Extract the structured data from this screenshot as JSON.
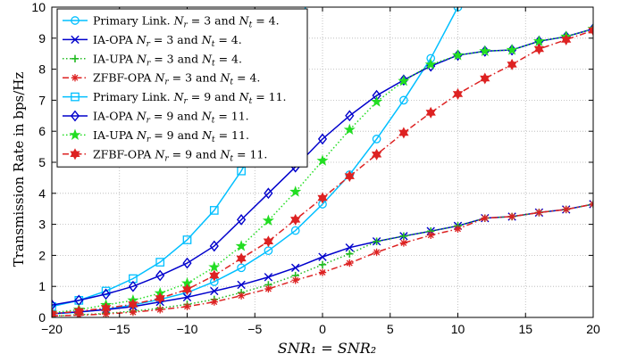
{
  "chart_data": {
    "type": "line",
    "title": "",
    "xlabel": "SNR₁ = SNR₂",
    "ylabel": "Transmission Rate in bps/Hz",
    "xlim": [
      -20,
      20
    ],
    "ylim": [
      0,
      10
    ],
    "xticks": [
      -20,
      -15,
      -10,
      -5,
      0,
      5,
      10,
      15,
      20
    ],
    "yticks": [
      0,
      1,
      2,
      3,
      4,
      5,
      6,
      7,
      8,
      9,
      10
    ],
    "grid": true,
    "legend_position": "top-left",
    "series": [
      {
        "name": "Primary Link. Nr = 3 and Nt = 4.",
        "color": "#00BFFF",
        "marker": "circle",
        "dash": "solid",
        "x": [
          -20,
          -18,
          -16,
          -14,
          -12,
          -10,
          -8,
          -6,
          -4,
          -2,
          0,
          2,
          4,
          6,
          8,
          10
        ],
        "y": [
          0.12,
          0.17,
          0.26,
          0.4,
          0.58,
          0.8,
          1.15,
          1.6,
          2.15,
          2.8,
          3.65,
          4.6,
          5.75,
          7.0,
          8.35,
          10.0
        ]
      },
      {
        "name": "IA-OPA Nr = 3 and Nt = 4.",
        "color": "#0000CC",
        "marker": "x",
        "dash": "solid",
        "x": [
          -20,
          -18,
          -16,
          -14,
          -12,
          -10,
          -8,
          -6,
          -4,
          -2,
          0,
          2,
          4,
          6,
          8,
          10,
          12,
          14,
          16,
          18,
          20
        ],
        "y": [
          0.12,
          0.18,
          0.25,
          0.35,
          0.5,
          0.65,
          0.85,
          1.05,
          1.3,
          1.6,
          1.95,
          2.25,
          2.45,
          2.62,
          2.78,
          2.95,
          3.2,
          3.25,
          3.38,
          3.48,
          3.65
        ]
      },
      {
        "name": "IA-UPA Nr = 3 and Nt = 4.",
        "color": "#22BB22",
        "marker": "plus",
        "dash": "dotted",
        "x": [
          -20,
          -18,
          -16,
          -14,
          -12,
          -10,
          -8,
          -6,
          -4,
          -2,
          0,
          2,
          4,
          6,
          8,
          10,
          12,
          14,
          16,
          18,
          20
        ],
        "y": [
          0.05,
          0.08,
          0.13,
          0.2,
          0.3,
          0.42,
          0.58,
          0.8,
          1.05,
          1.35,
          1.7,
          2.05,
          2.45,
          2.62,
          2.78,
          2.95,
          3.2,
          3.25,
          3.38,
          3.48,
          3.65
        ]
      },
      {
        "name": "ZFBF-OPA Nr = 3 and Nt = 4.",
        "color": "#DD2222",
        "marker": "asterisk",
        "dash": "dashdot",
        "x": [
          -20,
          -18,
          -16,
          -14,
          -12,
          -10,
          -8,
          -6,
          -4,
          -2,
          0,
          2,
          4,
          6,
          8,
          10,
          12,
          14,
          16,
          18,
          20
        ],
        "y": [
          0.05,
          0.07,
          0.11,
          0.17,
          0.25,
          0.35,
          0.5,
          0.7,
          0.92,
          1.2,
          1.45,
          1.75,
          2.1,
          2.4,
          2.65,
          2.85,
          3.2,
          3.25,
          3.38,
          3.48,
          3.65
        ]
      },
      {
        "name": "Primary Link. Nr = 9 and Nt = 11.",
        "color": "#00BFFF",
        "marker": "square",
        "dash": "solid",
        "x": [
          -20,
          -18,
          -16,
          -14,
          -12,
          -10,
          -8,
          -6,
          -4,
          -2
        ],
        "y": [
          0.35,
          0.55,
          0.85,
          1.25,
          1.78,
          2.5,
          3.45,
          4.72,
          6.3,
          8.3
        ]
      },
      {
        "name": "IA-OPA Nr = 9 and Nt = 11.",
        "color": "#0000CC",
        "marker": "diamond",
        "dash": "solid",
        "x": [
          -20,
          -18,
          -16,
          -14,
          -12,
          -10,
          -8,
          -6,
          -4,
          -2,
          0,
          2,
          4,
          6,
          8,
          10,
          12,
          14,
          16,
          18,
          20
        ],
        "y": [
          0.4,
          0.55,
          0.75,
          1.0,
          1.35,
          1.75,
          2.3,
          3.15,
          4.0,
          4.85,
          5.75,
          6.5,
          7.15,
          7.65,
          8.1,
          8.45,
          8.58,
          8.62,
          8.9,
          9.05,
          9.3
        ]
      },
      {
        "name": "IA-UPA Nr = 9 and Nt = 11.",
        "color": "#22DD22",
        "marker": "star",
        "dash": "dotted",
        "x": [
          -20,
          -18,
          -16,
          -14,
          -12,
          -10,
          -8,
          -6,
          -4,
          -2,
          0,
          2,
          4,
          6,
          8,
          10,
          12,
          14,
          16,
          18,
          20
        ],
        "y": [
          0.15,
          0.25,
          0.4,
          0.55,
          0.78,
          1.1,
          1.62,
          2.3,
          3.12,
          4.05,
          5.05,
          6.05,
          6.95,
          7.62,
          8.15,
          8.45,
          8.58,
          8.62,
          8.9,
          9.05,
          9.3
        ]
      },
      {
        "name": "ZFBF-OPA Nr = 9 and Nt = 11.",
        "color": "#DD2222",
        "marker": "hexagram",
        "dash": "dashdot",
        "x": [
          -20,
          -18,
          -16,
          -14,
          -12,
          -10,
          -8,
          -6,
          -4,
          -2,
          0,
          2,
          4,
          6,
          8,
          10,
          12,
          14,
          16,
          18,
          20
        ],
        "y": [
          0.12,
          0.2,
          0.3,
          0.42,
          0.62,
          0.9,
          1.35,
          1.9,
          2.45,
          3.15,
          3.85,
          4.55,
          5.25,
          5.95,
          6.6,
          7.2,
          7.7,
          8.15,
          8.65,
          8.95,
          9.25
        ]
      }
    ],
    "legend_entries": [
      {
        "text": "Primary Link.",
        "nr": "3",
        "nt": "4."
      },
      {
        "text": "IA-OPA",
        "nr": "3",
        "nt": "4."
      },
      {
        "text": "IA-UPA",
        "nr": "3",
        "nt": "4."
      },
      {
        "text": "ZFBF-OPA",
        "nr": "3",
        "nt": "4."
      },
      {
        "text": "Primary Link.",
        "nr": "9",
        "nt": "11."
      },
      {
        "text": "IA-OPA",
        "nr": "9",
        "nt": "11."
      },
      {
        "text": "IA-UPA",
        "nr": "9",
        "nt": "11."
      },
      {
        "text": "ZFBF-OPA",
        "nr": "9",
        "nt": "11."
      }
    ]
  }
}
